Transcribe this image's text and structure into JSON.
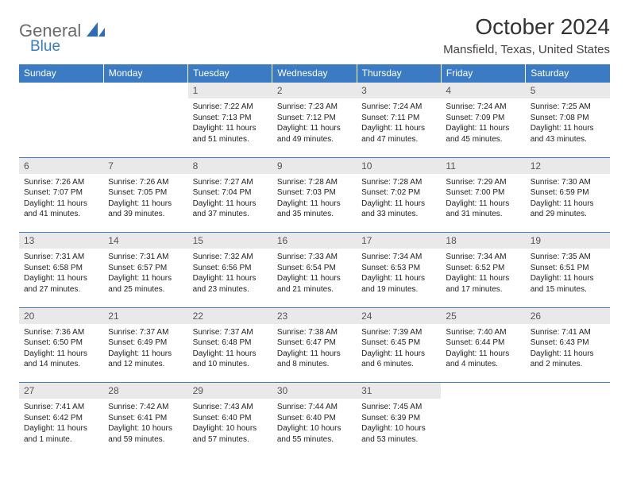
{
  "brand": {
    "general": "General",
    "blue": "Blue"
  },
  "title": "October 2024",
  "location": "Mansfield, Texas, United States",
  "colors": {
    "header_bg": "#3b7bc4",
    "header_text": "#ffffff",
    "daynum_bg": "#e9e9e9",
    "daynum_text": "#555555",
    "border": "#3b7bc4",
    "body_text": "#222222",
    "logo_gray": "#6b6b6b",
    "logo_blue": "#3b7bc4"
  },
  "day_headers": [
    "Sunday",
    "Monday",
    "Tuesday",
    "Wednesday",
    "Thursday",
    "Friday",
    "Saturday"
  ],
  "weeks": [
    [
      null,
      null,
      {
        "n": "1",
        "sr": "7:22 AM",
        "ss": "7:13 PM",
        "dl": "11 hours and 51 minutes."
      },
      {
        "n": "2",
        "sr": "7:23 AM",
        "ss": "7:12 PM",
        "dl": "11 hours and 49 minutes."
      },
      {
        "n": "3",
        "sr": "7:24 AM",
        "ss": "7:11 PM",
        "dl": "11 hours and 47 minutes."
      },
      {
        "n": "4",
        "sr": "7:24 AM",
        "ss": "7:09 PM",
        "dl": "11 hours and 45 minutes."
      },
      {
        "n": "5",
        "sr": "7:25 AM",
        "ss": "7:08 PM",
        "dl": "11 hours and 43 minutes."
      }
    ],
    [
      {
        "n": "6",
        "sr": "7:26 AM",
        "ss": "7:07 PM",
        "dl": "11 hours and 41 minutes."
      },
      {
        "n": "7",
        "sr": "7:26 AM",
        "ss": "7:05 PM",
        "dl": "11 hours and 39 minutes."
      },
      {
        "n": "8",
        "sr": "7:27 AM",
        "ss": "7:04 PM",
        "dl": "11 hours and 37 minutes."
      },
      {
        "n": "9",
        "sr": "7:28 AM",
        "ss": "7:03 PM",
        "dl": "11 hours and 35 minutes."
      },
      {
        "n": "10",
        "sr": "7:28 AM",
        "ss": "7:02 PM",
        "dl": "11 hours and 33 minutes."
      },
      {
        "n": "11",
        "sr": "7:29 AM",
        "ss": "7:00 PM",
        "dl": "11 hours and 31 minutes."
      },
      {
        "n": "12",
        "sr": "7:30 AM",
        "ss": "6:59 PM",
        "dl": "11 hours and 29 minutes."
      }
    ],
    [
      {
        "n": "13",
        "sr": "7:31 AM",
        "ss": "6:58 PM",
        "dl": "11 hours and 27 minutes."
      },
      {
        "n": "14",
        "sr": "7:31 AM",
        "ss": "6:57 PM",
        "dl": "11 hours and 25 minutes."
      },
      {
        "n": "15",
        "sr": "7:32 AM",
        "ss": "6:56 PM",
        "dl": "11 hours and 23 minutes."
      },
      {
        "n": "16",
        "sr": "7:33 AM",
        "ss": "6:54 PM",
        "dl": "11 hours and 21 minutes."
      },
      {
        "n": "17",
        "sr": "7:34 AM",
        "ss": "6:53 PM",
        "dl": "11 hours and 19 minutes."
      },
      {
        "n": "18",
        "sr": "7:34 AM",
        "ss": "6:52 PM",
        "dl": "11 hours and 17 minutes."
      },
      {
        "n": "19",
        "sr": "7:35 AM",
        "ss": "6:51 PM",
        "dl": "11 hours and 15 minutes."
      }
    ],
    [
      {
        "n": "20",
        "sr": "7:36 AM",
        "ss": "6:50 PM",
        "dl": "11 hours and 14 minutes."
      },
      {
        "n": "21",
        "sr": "7:37 AM",
        "ss": "6:49 PM",
        "dl": "11 hours and 12 minutes."
      },
      {
        "n": "22",
        "sr": "7:37 AM",
        "ss": "6:48 PM",
        "dl": "11 hours and 10 minutes."
      },
      {
        "n": "23",
        "sr": "7:38 AM",
        "ss": "6:47 PM",
        "dl": "11 hours and 8 minutes."
      },
      {
        "n": "24",
        "sr": "7:39 AM",
        "ss": "6:45 PM",
        "dl": "11 hours and 6 minutes."
      },
      {
        "n": "25",
        "sr": "7:40 AM",
        "ss": "6:44 PM",
        "dl": "11 hours and 4 minutes."
      },
      {
        "n": "26",
        "sr": "7:41 AM",
        "ss": "6:43 PM",
        "dl": "11 hours and 2 minutes."
      }
    ],
    [
      {
        "n": "27",
        "sr": "7:41 AM",
        "ss": "6:42 PM",
        "dl": "11 hours and 1 minute."
      },
      {
        "n": "28",
        "sr": "7:42 AM",
        "ss": "6:41 PM",
        "dl": "10 hours and 59 minutes."
      },
      {
        "n": "29",
        "sr": "7:43 AM",
        "ss": "6:40 PM",
        "dl": "10 hours and 57 minutes."
      },
      {
        "n": "30",
        "sr": "7:44 AM",
        "ss": "6:40 PM",
        "dl": "10 hours and 55 minutes."
      },
      {
        "n": "31",
        "sr": "7:45 AM",
        "ss": "6:39 PM",
        "dl": "10 hours and 53 minutes."
      },
      null,
      null
    ]
  ],
  "labels": {
    "sunrise": "Sunrise:",
    "sunset": "Sunset:",
    "daylight": "Daylight:"
  }
}
